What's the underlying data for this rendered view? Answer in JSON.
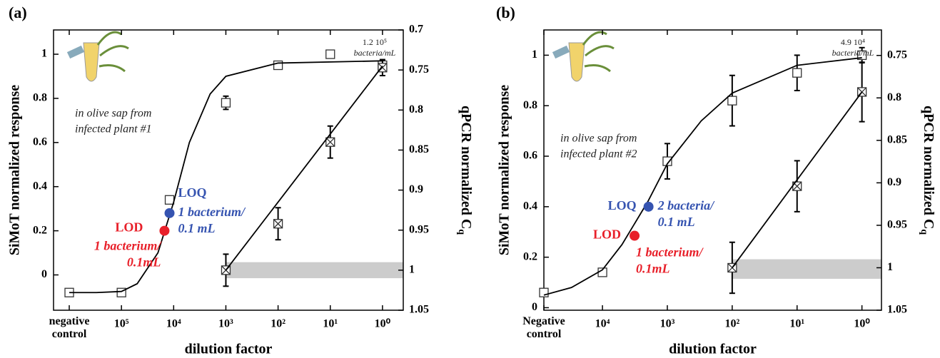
{
  "chart_data": [
    {
      "type": "line",
      "panel_label": "(a)",
      "xlabel": "dilution factor",
      "ylabel": "SiMoT normalized response",
      "y2label": "qPCR normalized C",
      "y2label_sub": "q",
      "xscale": "log",
      "xlim": [
        2000000,
        0.4
      ],
      "xticks": [
        {
          "value": 1000000,
          "label": "negative control"
        },
        {
          "value": 100000,
          "label": "10⁵"
        },
        {
          "value": 10000,
          "label": "10⁴"
        },
        {
          "value": 1000,
          "label": "10³"
        },
        {
          "value": 100,
          "label": "10²"
        },
        {
          "value": 10,
          "label": "10¹"
        },
        {
          "value": 1,
          "label": "10⁰"
        }
      ],
      "ylim": [
        -0.16,
        1.11
      ],
      "yticks": [
        0,
        0.2,
        0.4,
        0.6,
        0.8,
        1
      ],
      "y2lim": [
        1.05,
        0.7
      ],
      "y2ticks": [
        0.7,
        0.75,
        0.8,
        0.85,
        0.9,
        0.95,
        1,
        1.05
      ],
      "series": [
        {
          "marker": "square",
          "color": "#333333",
          "x": [
            1000000,
            100000,
            12000,
            1000,
            100,
            10,
            1
          ],
          "values": [
            -0.08,
            -0.08,
            0.34,
            0.78,
            0.95,
            1.0,
            0.95
          ],
          "errors": [
            0.01,
            0.01,
            0.015,
            0.03,
            0.015,
            0.01,
            0.02
          ]
        },
        {
          "marker": "crossed-square",
          "axis": "y2",
          "color": "#333333",
          "x": [
            1000,
            100,
            10,
            1
          ],
          "values": [
            1.0,
            0.942,
            0.84,
            0.747
          ],
          "errors": [
            0.02,
            0.02,
            0.02,
            0.01
          ]
        },
        {
          "marker": "none",
          "color": "#000000",
          "x": [
            1000000,
            300000,
            100000,
            50000,
            20000,
            10000,
            5000,
            2000,
            1000,
            100,
            1
          ],
          "values": [
            -0.08,
            -0.08,
            -0.075,
            -0.04,
            0.1,
            0.33,
            0.6,
            0.82,
            0.9,
            0.96,
            0.97
          ]
        },
        {
          "marker": "none",
          "axis": "y2",
          "color": "#000000",
          "x": [
            1000,
            1
          ],
          "values": [
            1.0,
            0.745
          ]
        }
      ],
      "band": {
        "x0": 1000,
        "y2": [
          0.99,
          1.01
        ],
        "color": "#cccccc"
      },
      "points": [
        {
          "label": "LOQ",
          "x": 12000,
          "y": 0.28,
          "color": "#3553b0",
          "note": [
            "1 bacterium/",
            "0.1 mL"
          ]
        },
        {
          "label": "LOD",
          "x": 15000,
          "y": 0.2,
          "color": "#e8202a",
          "note": [
            "1 bacterium/",
            "0.1mL"
          ]
        }
      ],
      "annotations": [
        {
          "text": [
            "in olive sap from",
            "infected plant #1"
          ]
        },
        {
          "text": [
            "1.2 10⁵",
            "bacteria/mL"
          ]
        }
      ]
    },
    {
      "type": "line",
      "panel_label": "(b)",
      "xlabel": "dilution factor",
      "ylabel": "SiMoT normalized response",
      "y2label": "qPCR normalized C",
      "y2label_sub": "q",
      "xscale": "log",
      "xlim": [
        80000,
        0.5
      ],
      "xticks": [
        {
          "value": 80000,
          "label": "Negative control"
        },
        {
          "value": 10000,
          "label": "10⁴"
        },
        {
          "value": 1000,
          "label": "10³"
        },
        {
          "value": 100,
          "label": "10²"
        },
        {
          "value": 10,
          "label": "10¹"
        },
        {
          "value": 1,
          "label": "10⁰"
        }
      ],
      "ylim": [
        -0.01,
        1.1
      ],
      "yticks": [
        0,
        0.2,
        0.4,
        0.6,
        0.8,
        1
      ],
      "y2lim": [
        1.05,
        0.72
      ],
      "y2ticks": [
        0.75,
        0.8,
        0.85,
        0.9,
        0.95,
        1,
        1.05
      ],
      "series": [
        {
          "marker": "square",
          "color": "#333333",
          "x": [
            80000,
            10000,
            1000,
            100,
            10,
            1
          ],
          "values": [
            0.06,
            0.14,
            0.58,
            0.82,
            0.93,
            1.0
          ],
          "errors": [
            0.015,
            0.015,
            0.07,
            0.1,
            0.07,
            0.03
          ]
        },
        {
          "marker": "crossed-square",
          "axis": "y2",
          "color": "#333333",
          "x": [
            100,
            10,
            1
          ],
          "values": [
            1.0,
            0.904,
            0.793
          ],
          "errors": [
            0.03,
            0.03,
            0.035
          ]
        },
        {
          "marker": "none",
          "color": "#000000",
          "x": [
            80000,
            30000,
            10000,
            5000,
            2000,
            1000,
            300,
            100,
            10,
            1
          ],
          "values": [
            0.05,
            0.08,
            0.15,
            0.25,
            0.42,
            0.57,
            0.74,
            0.85,
            0.96,
            0.99
          ]
        },
        {
          "marker": "none",
          "axis": "y2",
          "color": "#000000",
          "x": [
            100,
            1
          ],
          "values": [
            1.0,
            0.793
          ]
        }
      ],
      "band": {
        "x0": 100,
        "y2": [
          0.99,
          1.013
        ],
        "color": "#cccccc"
      },
      "points": [
        {
          "label": "LOQ",
          "x": 1950,
          "y": 0.4,
          "color": "#3553b0",
          "note": [
            "2 bacteria/",
            "0.1 mL"
          ]
        },
        {
          "label": "LOD",
          "x": 3200,
          "y": 0.285,
          "color": "#e8202a",
          "note": [
            "1 bacterium/",
            "0.1mL"
          ]
        }
      ],
      "annotations": [
        {
          "text": [
            "in olive sap from",
            "infected plant #2"
          ]
        },
        {
          "text": [
            "4.9 10⁴",
            "bacteria/mL"
          ]
        }
      ]
    }
  ]
}
